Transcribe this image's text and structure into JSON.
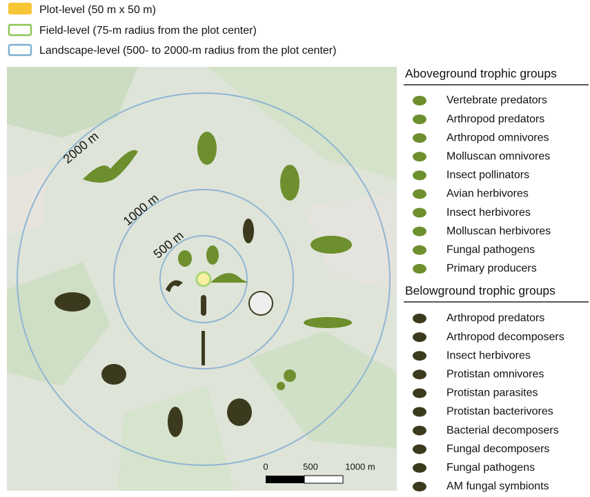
{
  "legend": [
    "Plot-level (50 m x 50 m)",
    "Field-level (75-m radius from the plot center)",
    "Landscape-level (500- to 2000-m radius from the plot center)"
  ],
  "map": {
    "rings": [
      "2000 m",
      "1000 m",
      "500 m"
    ],
    "scale": [
      "0",
      "500",
      "1000 m"
    ]
  },
  "aboveground": {
    "title": "Aboveground trophic groups",
    "items": [
      "Vertebrate predators",
      "Arthropod predators",
      "Arthropod omnivores",
      "Molluscan omnivores",
      "Insect pollinators",
      "Avian herbivores",
      "Insect herbivores",
      "Molluscan herbivores",
      "Fungal pathogens",
      "Primary producers"
    ]
  },
  "belowground": {
    "title": "Belowground trophic groups",
    "items": [
      "Arthropod predators",
      "Arthropod decomposers",
      "Insect herbivores",
      "Protistan omnivores",
      "Protistan parasites",
      "Protistan bacterivores",
      "Bacterial decomposers",
      "Fungal decomposers",
      "Fungal pathogens",
      "AM fungal symbionts"
    ]
  }
}
